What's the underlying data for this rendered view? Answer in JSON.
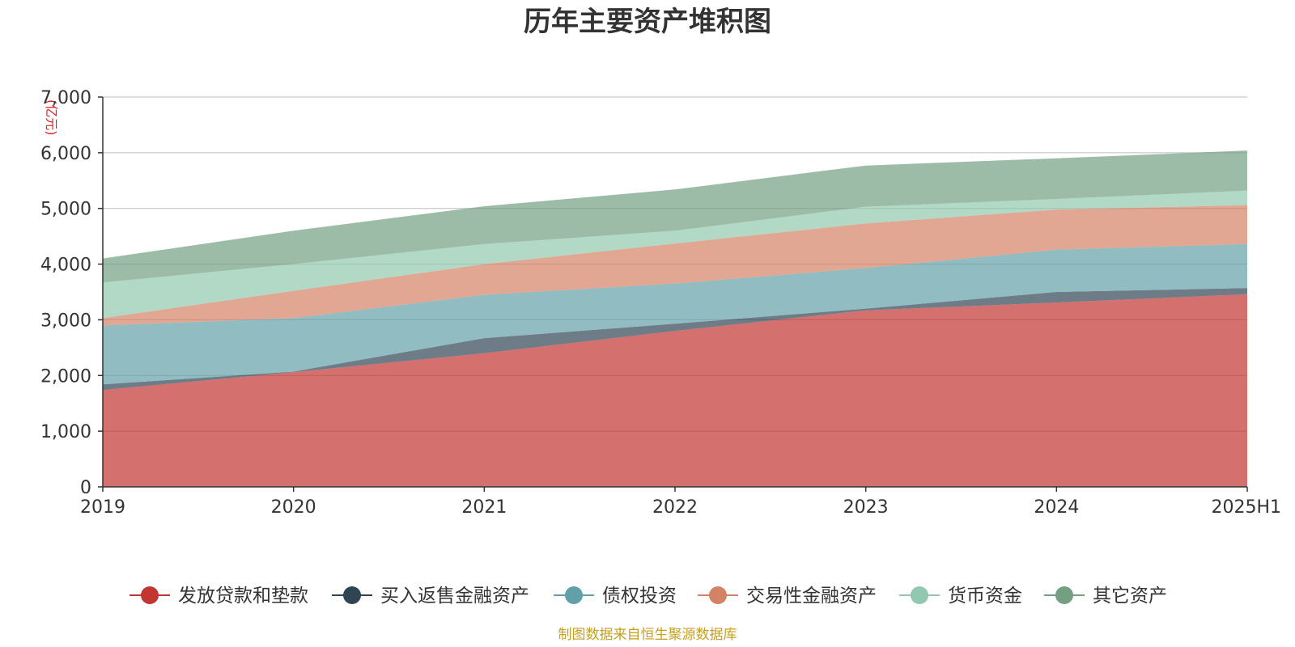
{
  "chart_data": {
    "type": "area",
    "stacked": true,
    "title": "历年主要资产堆积图",
    "ylabel": "(亿元)",
    "categories": [
      "2019",
      "2020",
      "2021",
      "2022",
      "2023",
      "2024",
      "2025H1"
    ],
    "ylim": [
      0,
      7000
    ],
    "yticks": [
      0,
      1000,
      2000,
      3000,
      4000,
      5000,
      6000,
      7000
    ],
    "ytick_labels": [
      "0",
      "1,000",
      "2,000",
      "3,000",
      "4,000",
      "5,000",
      "6,000",
      "7,000"
    ],
    "grid": true,
    "legend_position": "bottom",
    "series": [
      {
        "name": "发放贷款和垫款",
        "color": "#c23531",
        "values": [
          1740,
          2060,
          2400,
          2800,
          3170,
          3310,
          3460
        ]
      },
      {
        "name": "买入返售金融资产",
        "color": "#2f4554",
        "values": [
          100,
          10,
          270,
          130,
          30,
          190,
          110
        ]
      },
      {
        "name": "债权投资",
        "color": "#61a0a8",
        "values": [
          1060,
          960,
          780,
          720,
          730,
          760,
          790
        ]
      },
      {
        "name": "交易性金融资产",
        "color": "#d48265",
        "values": [
          130,
          490,
          550,
          720,
          800,
          720,
          700
        ]
      },
      {
        "name": "货币资金",
        "color": "#91c7ae",
        "values": [
          640,
          480,
          360,
          230,
          300,
          190,
          260
        ]
      },
      {
        "name": "其它资产",
        "color": "#749f83",
        "values": [
          430,
          600,
          680,
          740,
          740,
          730,
          720
        ]
      }
    ]
  },
  "footer": {
    "source": "制图数据来自恒生聚源数据库"
  }
}
